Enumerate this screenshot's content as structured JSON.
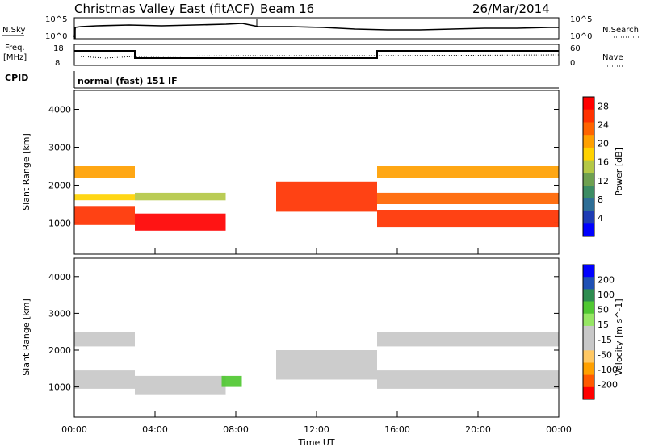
{
  "header": {
    "title": "Christmas Valley East (fitACF)",
    "beam": "Beam 16",
    "date": "26/Mar/2014"
  },
  "top_panels": {
    "nsky_label": "N.Sky",
    "nsky_ticks_left": [
      "10^5",
      "10^0"
    ],
    "nsky_ticks_right": [
      "10^5",
      "10^0"
    ],
    "nsearch_label": "N.Search",
    "freq_label_1": "Freq.",
    "freq_label_2": "[MHz]",
    "freq_ticks_left": [
      "18",
      "8"
    ],
    "freq_ticks_right": [
      "60",
      "0"
    ],
    "nave_label": "Nave",
    "cpid_label": "CPID",
    "cpid_text": "normal (fast) 151 IF"
  },
  "colors": {
    "power": [
      "#0000ff",
      "#1e3cb4",
      "#2e6e96",
      "#3c8c64",
      "#6ea050",
      "#b4c846",
      "#ffd200",
      "#ffa000",
      "#ff6400",
      "#ff3200",
      "#ff0000"
    ],
    "velocity": [
      "#ff0000",
      "#ff5a00",
      "#ffa000",
      "#ffc864",
      "#c8c8c8",
      "#c8c8c8",
      "#96e664",
      "#50c832",
      "#2e8c50",
      "#1e50b4",
      "#0000ff"
    ]
  },
  "chart_data": [
    {
      "type": "heatmap",
      "panel": "power",
      "ylabel": "Slant Range [km]",
      "xlabel": "Time UT",
      "x_ticks": [
        "00:00",
        "04:00",
        "08:00",
        "12:00",
        "16:00",
        "20:00",
        "00:00"
      ],
      "x_range_hours": [
        0,
        24
      ],
      "y_ticks": [
        1000,
        2000,
        3000,
        4000
      ],
      "ylim": [
        180,
        4500
      ],
      "colorbar_label": "Power [dB]",
      "colorbar_ticks": [
        4,
        8,
        12,
        16,
        20,
        24,
        28
      ],
      "colorbar_range": [
        0,
        30
      ],
      "bands": [
        {
          "start": 0.0,
          "end": 3.0,
          "lower": 950,
          "upper": 1450,
          "value": 28
        },
        {
          "start": 0.0,
          "end": 3.0,
          "lower": 1600,
          "upper": 1750,
          "value": 18
        },
        {
          "start": 0.0,
          "end": 3.0,
          "lower": 2200,
          "upper": 2500,
          "value": 20
        },
        {
          "start": 3.0,
          "end": 7.5,
          "lower": 800,
          "upper": 1250,
          "value": 29
        },
        {
          "start": 3.0,
          "end": 7.5,
          "lower": 1600,
          "upper": 1800,
          "value": 14
        },
        {
          "start": 10.0,
          "end": 15.0,
          "lower": 1300,
          "upper": 2100,
          "value": 26
        },
        {
          "start": 15.0,
          "end": 24.0,
          "lower": 900,
          "upper": 1350,
          "value": 28
        },
        {
          "start": 15.0,
          "end": 24.0,
          "lower": 1500,
          "upper": 1800,
          "value": 24
        },
        {
          "start": 15.0,
          "end": 24.0,
          "lower": 2200,
          "upper": 2500,
          "value": 20
        }
      ]
    },
    {
      "type": "heatmap",
      "panel": "velocity",
      "ylabel": "Slant Range [km]",
      "xlabel": "Time UT",
      "x_ticks": [
        "00:00",
        "04:00",
        "08:00",
        "12:00",
        "16:00",
        "20:00",
        "00:00"
      ],
      "x_range_hours": [
        0,
        24
      ],
      "y_ticks": [
        1000,
        2000,
        3000,
        4000
      ],
      "ylim": [
        180,
        4500
      ],
      "colorbar_label": "Velocity [m s^-1]",
      "colorbar_ticks": [
        -200,
        -100,
        -50,
        -15,
        15,
        50,
        100,
        200
      ],
      "bands": [
        {
          "start": 0.0,
          "end": 3.0,
          "lower": 950,
          "upper": 1450,
          "value": 0
        },
        {
          "start": 0.0,
          "end": 3.0,
          "lower": 2100,
          "upper": 2500,
          "value": 0
        },
        {
          "start": 3.0,
          "end": 7.5,
          "lower": 800,
          "upper": 1300,
          "value": 0
        },
        {
          "start": 7.3,
          "end": 8.3,
          "lower": 1000,
          "upper": 1300,
          "value": 80
        },
        {
          "start": 10.0,
          "end": 15.0,
          "lower": 1200,
          "upper": 2000,
          "value": 0
        },
        {
          "start": 15.0,
          "end": 24.0,
          "lower": 950,
          "upper": 1450,
          "value": 0
        },
        {
          "start": 15.0,
          "end": 24.0,
          "lower": 2100,
          "upper": 2500,
          "value": 0
        }
      ]
    }
  ]
}
